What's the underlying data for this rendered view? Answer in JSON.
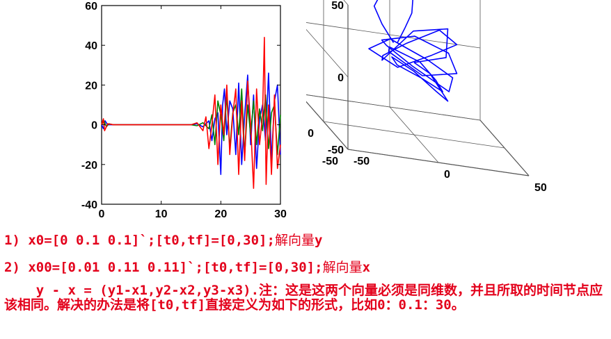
{
  "chart_data": [
    {
      "type": "line",
      "xlim": [
        0,
        30
      ],
      "ylim": [
        -40,
        60
      ],
      "xticks": [
        "0",
        "10",
        "20",
        "30"
      ],
      "yticks": [
        "-40",
        "-20",
        "0",
        "20",
        "40",
        "60"
      ],
      "series": [
        {
          "color": "#0000ff",
          "x": [
            0,
            0.3,
            0.6,
            1,
            2,
            5,
            10,
            15,
            16,
            17,
            18,
            18.5,
            19,
            19.5,
            20,
            20.3,
            20.6,
            21,
            21.5,
            22,
            22.5,
            23,
            23.5,
            24,
            24.5,
            25,
            25.5,
            26,
            26.5,
            27,
            27.5,
            28,
            28.5,
            29,
            29.5,
            30
          ],
          "y": [
            0,
            -2,
            2,
            0,
            0,
            0,
            0,
            0,
            0.5,
            -1,
            2,
            -8,
            3,
            6,
            -25,
            10,
            18,
            -5,
            12,
            8,
            -15,
            21,
            -20,
            5,
            25,
            -10,
            15,
            -22,
            3,
            10,
            -8,
            26,
            -18,
            12,
            20,
            -15
          ]
        },
        {
          "color": "#008000",
          "x": [
            0,
            0.4,
            0.8,
            1.2,
            2,
            5,
            10,
            15,
            16,
            17,
            18,
            18.5,
            19,
            19.5,
            20,
            20.5,
            21,
            21.5,
            22,
            22.5,
            23,
            23.5,
            24,
            24.5,
            25,
            25.5,
            26,
            26.5,
            27,
            27.5,
            28,
            28.5,
            29,
            29.5,
            30
          ],
          "y": [
            0,
            2,
            -1,
            0.5,
            0,
            0,
            0,
            0,
            -0.5,
            1,
            -2,
            5,
            -10,
            12,
            5,
            -8,
            15,
            -12,
            6,
            10,
            -5,
            18,
            -15,
            10,
            -5,
            12,
            -10,
            8,
            -3,
            15,
            -12,
            6,
            10,
            -15,
            5
          ]
        },
        {
          "color": "#ff0000",
          "x": [
            0,
            0.3,
            0.5,
            1,
            2,
            5,
            10,
            15,
            16,
            17,
            17.5,
            18,
            18.5,
            19,
            19.5,
            20,
            20.5,
            21,
            21.5,
            22,
            22.5,
            23,
            23.5,
            24,
            24.5,
            25,
            25.5,
            26,
            26.5,
            27,
            27.3,
            27.6,
            28,
            28.5,
            29,
            29.5,
            30
          ],
          "y": [
            0,
            3,
            -3,
            0.5,
            0,
            0,
            0,
            0,
            1,
            -3,
            4,
            -12,
            0,
            15,
            -20,
            10,
            -5,
            20,
            -15,
            5,
            18,
            -25,
            12,
            -18,
            22,
            0,
            -32,
            18,
            -10,
            5,
            44,
            -30,
            10,
            -25,
            15,
            -22,
            -10
          ]
        }
      ]
    },
    {
      "type": "line",
      "xlim": [
        -50,
        50
      ],
      "ylim": [
        -50,
        50
      ],
      "zlim": [
        -50,
        50
      ],
      "xticks": [
        "-50",
        "0",
        "50"
      ],
      "yticks": [
        "-50",
        "0",
        "50"
      ],
      "zticks": [
        "-50",
        "0",
        "50"
      ],
      "series": [
        {
          "color": "#0000ff",
          "x": [
            0,
            15,
            20,
            5,
            -15,
            -20,
            -10,
            10,
            25,
            15,
            -5,
            -25,
            -18,
            2,
            20,
            22,
            5,
            -12,
            -20,
            -5,
            15,
            25,
            10,
            -10,
            -15,
            0,
            12,
            18,
            8,
            -8,
            -15,
            -5,
            10,
            20,
            12,
            0
          ],
          "y": [
            0,
            -10,
            5,
            20,
            10,
            -10,
            -22,
            -15,
            5,
            20,
            15,
            0,
            -18,
            -20,
            -5,
            10,
            22,
            12,
            -8,
            -20,
            -15,
            5,
            20,
            15,
            -5,
            -12,
            0,
            8,
            15,
            5,
            -10,
            -18,
            -8,
            5,
            12,
            0
          ],
          "z": [
            0,
            10,
            25,
            15,
            -5,
            5,
            20,
            30,
            15,
            0,
            -10,
            5,
            20,
            10,
            -5,
            -20,
            -10,
            5,
            15,
            25,
            15,
            -5,
            -15,
            0,
            10,
            5,
            -10,
            -20,
            -15,
            -5,
            5,
            0,
            -15,
            -25,
            -10,
            0
          ]
        },
        {
          "color": "#0000ff",
          "x": [
            -10,
            -15,
            -18,
            -12,
            -5,
            0,
            5,
            2,
            -3,
            -8
          ],
          "y": [
            5,
            10,
            15,
            20,
            25,
            25,
            20,
            12,
            8,
            5
          ],
          "z": [
            10,
            20,
            30,
            40,
            45,
            48,
            42,
            30,
            20,
            10
          ]
        }
      ]
    }
  ],
  "text": {
    "line1_pre": "1) x0=[0 0.1 0.1]`;[t0,tf]=[0,30];",
    "line1_cn": "解向量",
    "line1_var": "y",
    "line2_pre": "2) x00=[0.01 0.11 0.11]`;[t0,tf]=[0,30];",
    "line2_cn": "解向量",
    "line2_var": "x",
    "para_code": "    y - x = (y1-x1,y2-x2,y3-x3).",
    "para_rest1": "注：这是这两个向量必须是同维数，并且所取的时间节点应该相同。解决的办法是将",
    "para_code2": "[t0,tf]",
    "para_rest2": "直接定义为如下的形式，比如",
    "para_code3": "0：0.1：30。"
  }
}
